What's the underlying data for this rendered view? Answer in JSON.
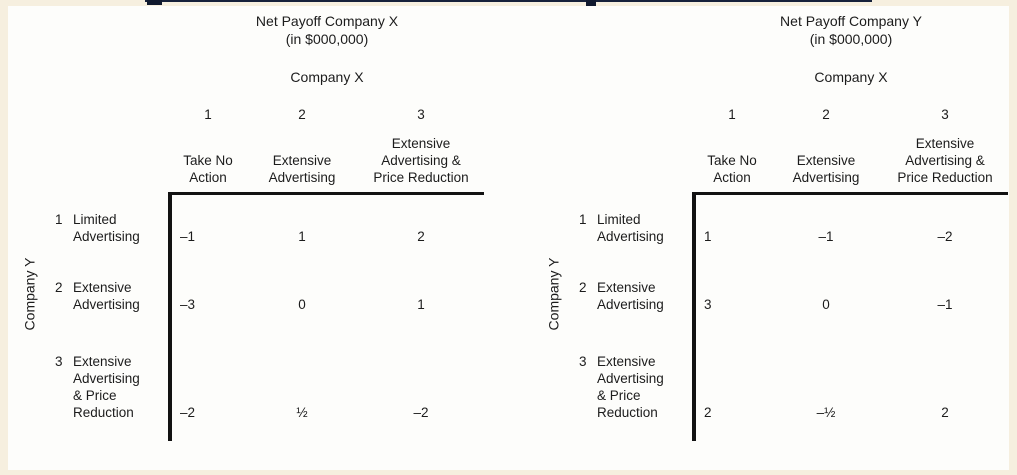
{
  "colors": {
    "background": "#f6efdf",
    "panel": "#fdfdfb",
    "text": "#1c1c1c",
    "line": "#121212",
    "cropped_artifact": "#16213a"
  },
  "matrices": [
    {
      "title": "Net Payoff Company X",
      "subtitle": "(in $000,000)",
      "column_axis_label": "Company X",
      "row_axis_label": "Company Y",
      "columns": [
        {
          "number": "1",
          "label": "Take No\nAction"
        },
        {
          "number": "2",
          "label": "Extensive\nAdvertising"
        },
        {
          "number": "3",
          "label": "Extensive\nAdvertising &\nPrice Reduction"
        }
      ],
      "rows": [
        {
          "number": "1",
          "label": "Limited\nAdvertising",
          "values": [
            "–1",
            "1",
            "2"
          ]
        },
        {
          "number": "2",
          "label": "Extensive\nAdvertising",
          "values": [
            "–3",
            "0",
            "1"
          ]
        },
        {
          "number": "3",
          "label": "Extensive\nAdvertising\n& Price\nReduction",
          "values": [
            "–2",
            "½",
            "–2"
          ]
        }
      ]
    },
    {
      "title": "Net Payoff Company Y",
      "subtitle": "(in $000,000)",
      "column_axis_label": "Company X",
      "row_axis_label": "Company Y",
      "columns": [
        {
          "number": "1",
          "label": "Take No\nAction"
        },
        {
          "number": "2",
          "label": "Extensive\nAdvertising"
        },
        {
          "number": "3",
          "label": "Extensive\nAdvertising &\nPrice Reduction"
        }
      ],
      "rows": [
        {
          "number": "1",
          "label": "Limited\nAdvertising",
          "values": [
            "1",
            "–1",
            "–2"
          ]
        },
        {
          "number": "2",
          "label": "Extensive\nAdvertising",
          "values": [
            "3",
            "0",
            "–1"
          ]
        },
        {
          "number": "3",
          "label": "Extensive\nAdvertising\n& Price\nReduction",
          "values": [
            "2",
            "–½",
            "2"
          ]
        }
      ]
    }
  ]
}
